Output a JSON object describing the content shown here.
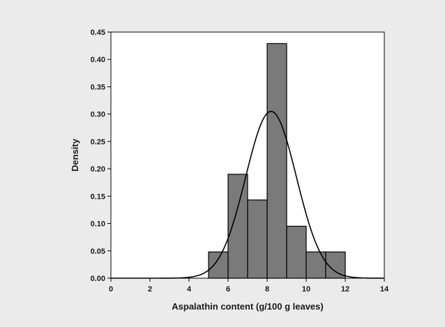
{
  "chart_data": {
    "type": "bar",
    "title": "",
    "xlabel": "Aspalathin content (g/100 g leaves)",
    "ylabel": "Density",
    "xlim": [
      0,
      14
    ],
    "ylim": [
      0,
      0.45
    ],
    "x_ticks": [
      "0",
      "2",
      "4",
      "6",
      "8",
      "10",
      "12",
      "14"
    ],
    "y_ticks": [
      "0.00",
      "0.05",
      "0.10",
      "0.15",
      "0.20",
      "0.25",
      "0.30",
      "0.35",
      "0.40",
      "0.45"
    ],
    "grid": false,
    "legend": "none",
    "histogram": {
      "bins": [
        {
          "start": 5,
          "end": 6,
          "density": 0.048
        },
        {
          "start": 6,
          "end": 7,
          "density": 0.19
        },
        {
          "start": 7,
          "end": 8,
          "density": 0.143
        },
        {
          "start": 8,
          "end": 9,
          "density": 0.429
        },
        {
          "start": 9,
          "end": 10,
          "density": 0.095
        },
        {
          "start": 10,
          "end": 11,
          "density": 0.048
        },
        {
          "start": 11,
          "end": 12,
          "density": 0.048
        }
      ],
      "bar_color": "#7a7a7a",
      "edge_color": "#000000"
    },
    "density_curve": {
      "type": "normal",
      "mean": 8.2,
      "sd": 1.3,
      "peak": 0.305,
      "color": "#000000"
    },
    "background_color": "#ebebeb",
    "plot_background": "#ffffff"
  }
}
